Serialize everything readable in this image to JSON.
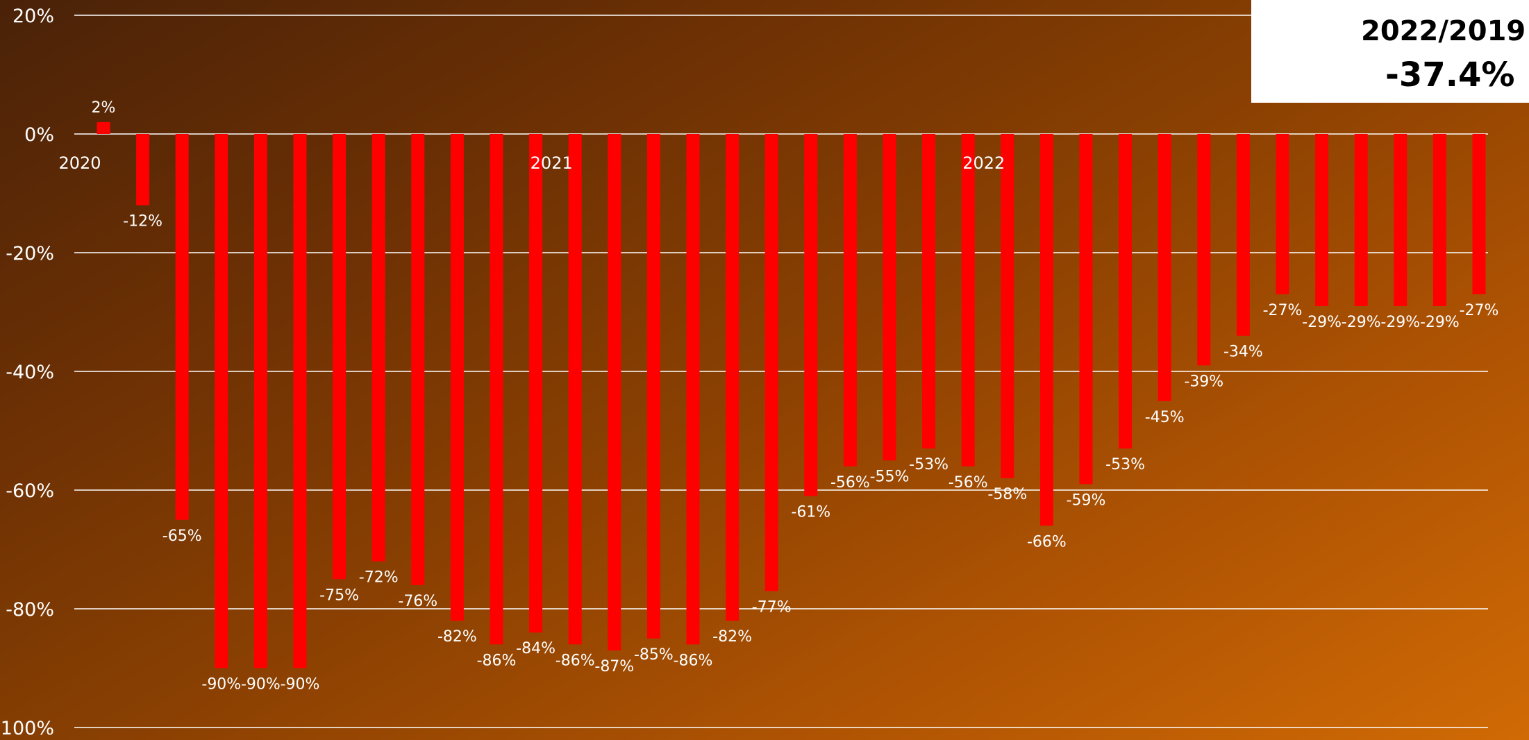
{
  "summary": {
    "label": "2022/2019",
    "value": "-37.4%"
  },
  "colors": {
    "bar": "#ff0000",
    "gridline": "#ffffff",
    "text": "#ffffff",
    "summary_bg": "#ffffff"
  },
  "chart_data": {
    "type": "bar",
    "title": "",
    "xlabel": "",
    "ylabel": "",
    "ylim": [
      -100,
      20
    ],
    "yticks": [
      20,
      0,
      -20,
      -40,
      -60,
      -80,
      -100
    ],
    "ytick_labels": [
      "20%",
      "0%",
      "-20%",
      "-40%",
      "-60%",
      "-80%",
      "-100%"
    ],
    "grid": true,
    "year_labels": [
      {
        "label": "2020",
        "index": 0
      },
      {
        "label": "2021",
        "index": 12
      },
      {
        "label": "2022",
        "index": 23
      }
    ],
    "values": [
      2,
      -12,
      -65,
      -90,
      -90,
      -90,
      -75,
      -72,
      -76,
      -82,
      -86,
      -84,
      -86,
      -87,
      -85,
      -86,
      -82,
      -77,
      -61,
      -56,
      -55,
      -53,
      -56,
      -58,
      -66,
      -59,
      -53,
      -45,
      -39,
      -34,
      -27,
      -29,
      -29,
      -29,
      -29,
      -27
    ],
    "labels": [
      "2%",
      "-12%",
      "-65%",
      "-90%",
      "-90%",
      "-90%",
      "-75%",
      "-72%",
      "-76%",
      "-82%",
      "-86%",
      "-84%",
      "-86%",
      "-87%",
      "-85%",
      "-86%",
      "-82%",
      "-77%",
      "-61%",
      "-56%",
      "-55%",
      "-53%",
      "-56%",
      "-58%",
      "-66%",
      "-59%",
      "-53%",
      "-45%",
      "-39%",
      "-34%",
      "-27%",
      "-29%",
      "-29%",
      "-29%",
      "-29%",
      "-27%"
    ]
  }
}
